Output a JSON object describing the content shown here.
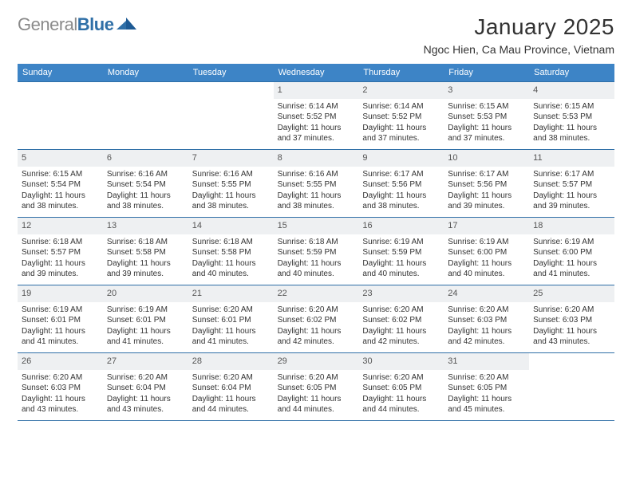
{
  "logo": {
    "word1": "General",
    "word2": "Blue"
  },
  "title": "January 2025",
  "location": "Ngoc Hien, Ca Mau Province, Vietnam",
  "colors": {
    "header_bg": "#3d84c6",
    "header_text": "#ffffff",
    "rule": "#2f6fa7",
    "daynum_bg": "#eef0f2",
    "body_text": "#333333",
    "logo_gray": "#8a8a8a",
    "logo_blue": "#2f6fa7",
    "page_bg": "#ffffff"
  },
  "weekdays": [
    "Sunday",
    "Monday",
    "Tuesday",
    "Wednesday",
    "Thursday",
    "Friday",
    "Saturday"
  ],
  "weeks": [
    [
      {
        "empty": true
      },
      {
        "empty": true
      },
      {
        "empty": true
      },
      {
        "n": "1",
        "sunrise": "6:14 AM",
        "sunset": "5:52 PM",
        "dl_h": "11",
        "dl_m": "37"
      },
      {
        "n": "2",
        "sunrise": "6:14 AM",
        "sunset": "5:52 PM",
        "dl_h": "11",
        "dl_m": "37"
      },
      {
        "n": "3",
        "sunrise": "6:15 AM",
        "sunset": "5:53 PM",
        "dl_h": "11",
        "dl_m": "37"
      },
      {
        "n": "4",
        "sunrise": "6:15 AM",
        "sunset": "5:53 PM",
        "dl_h": "11",
        "dl_m": "38"
      }
    ],
    [
      {
        "n": "5",
        "sunrise": "6:15 AM",
        "sunset": "5:54 PM",
        "dl_h": "11",
        "dl_m": "38"
      },
      {
        "n": "6",
        "sunrise": "6:16 AM",
        "sunset": "5:54 PM",
        "dl_h": "11",
        "dl_m": "38"
      },
      {
        "n": "7",
        "sunrise": "6:16 AM",
        "sunset": "5:55 PM",
        "dl_h": "11",
        "dl_m": "38"
      },
      {
        "n": "8",
        "sunrise": "6:16 AM",
        "sunset": "5:55 PM",
        "dl_h": "11",
        "dl_m": "38"
      },
      {
        "n": "9",
        "sunrise": "6:17 AM",
        "sunset": "5:56 PM",
        "dl_h": "11",
        "dl_m": "38"
      },
      {
        "n": "10",
        "sunrise": "6:17 AM",
        "sunset": "5:56 PM",
        "dl_h": "11",
        "dl_m": "39"
      },
      {
        "n": "11",
        "sunrise": "6:17 AM",
        "sunset": "5:57 PM",
        "dl_h": "11",
        "dl_m": "39"
      }
    ],
    [
      {
        "n": "12",
        "sunrise": "6:18 AM",
        "sunset": "5:57 PM",
        "dl_h": "11",
        "dl_m": "39"
      },
      {
        "n": "13",
        "sunrise": "6:18 AM",
        "sunset": "5:58 PM",
        "dl_h": "11",
        "dl_m": "39"
      },
      {
        "n": "14",
        "sunrise": "6:18 AM",
        "sunset": "5:58 PM",
        "dl_h": "11",
        "dl_m": "40"
      },
      {
        "n": "15",
        "sunrise": "6:18 AM",
        "sunset": "5:59 PM",
        "dl_h": "11",
        "dl_m": "40"
      },
      {
        "n": "16",
        "sunrise": "6:19 AM",
        "sunset": "5:59 PM",
        "dl_h": "11",
        "dl_m": "40"
      },
      {
        "n": "17",
        "sunrise": "6:19 AM",
        "sunset": "6:00 PM",
        "dl_h": "11",
        "dl_m": "40"
      },
      {
        "n": "18",
        "sunrise": "6:19 AM",
        "sunset": "6:00 PM",
        "dl_h": "11",
        "dl_m": "41"
      }
    ],
    [
      {
        "n": "19",
        "sunrise": "6:19 AM",
        "sunset": "6:01 PM",
        "dl_h": "11",
        "dl_m": "41"
      },
      {
        "n": "20",
        "sunrise": "6:19 AM",
        "sunset": "6:01 PM",
        "dl_h": "11",
        "dl_m": "41"
      },
      {
        "n": "21",
        "sunrise": "6:20 AM",
        "sunset": "6:01 PM",
        "dl_h": "11",
        "dl_m": "41"
      },
      {
        "n": "22",
        "sunrise": "6:20 AM",
        "sunset": "6:02 PM",
        "dl_h": "11",
        "dl_m": "42"
      },
      {
        "n": "23",
        "sunrise": "6:20 AM",
        "sunset": "6:02 PM",
        "dl_h": "11",
        "dl_m": "42"
      },
      {
        "n": "24",
        "sunrise": "6:20 AM",
        "sunset": "6:03 PM",
        "dl_h": "11",
        "dl_m": "42"
      },
      {
        "n": "25",
        "sunrise": "6:20 AM",
        "sunset": "6:03 PM",
        "dl_h": "11",
        "dl_m": "43"
      }
    ],
    [
      {
        "n": "26",
        "sunrise": "6:20 AM",
        "sunset": "6:03 PM",
        "dl_h": "11",
        "dl_m": "43"
      },
      {
        "n": "27",
        "sunrise": "6:20 AM",
        "sunset": "6:04 PM",
        "dl_h": "11",
        "dl_m": "43"
      },
      {
        "n": "28",
        "sunrise": "6:20 AM",
        "sunset": "6:04 PM",
        "dl_h": "11",
        "dl_m": "44"
      },
      {
        "n": "29",
        "sunrise": "6:20 AM",
        "sunset": "6:05 PM",
        "dl_h": "11",
        "dl_m": "44"
      },
      {
        "n": "30",
        "sunrise": "6:20 AM",
        "sunset": "6:05 PM",
        "dl_h": "11",
        "dl_m": "44"
      },
      {
        "n": "31",
        "sunrise": "6:20 AM",
        "sunset": "6:05 PM",
        "dl_h": "11",
        "dl_m": "45"
      },
      {
        "empty": true
      }
    ]
  ],
  "labels": {
    "sunrise": "Sunrise:",
    "sunset": "Sunset:",
    "daylight_prefix": "Daylight:",
    "hours_word": "hours",
    "and_word": "and",
    "minutes_word": "minutes."
  }
}
